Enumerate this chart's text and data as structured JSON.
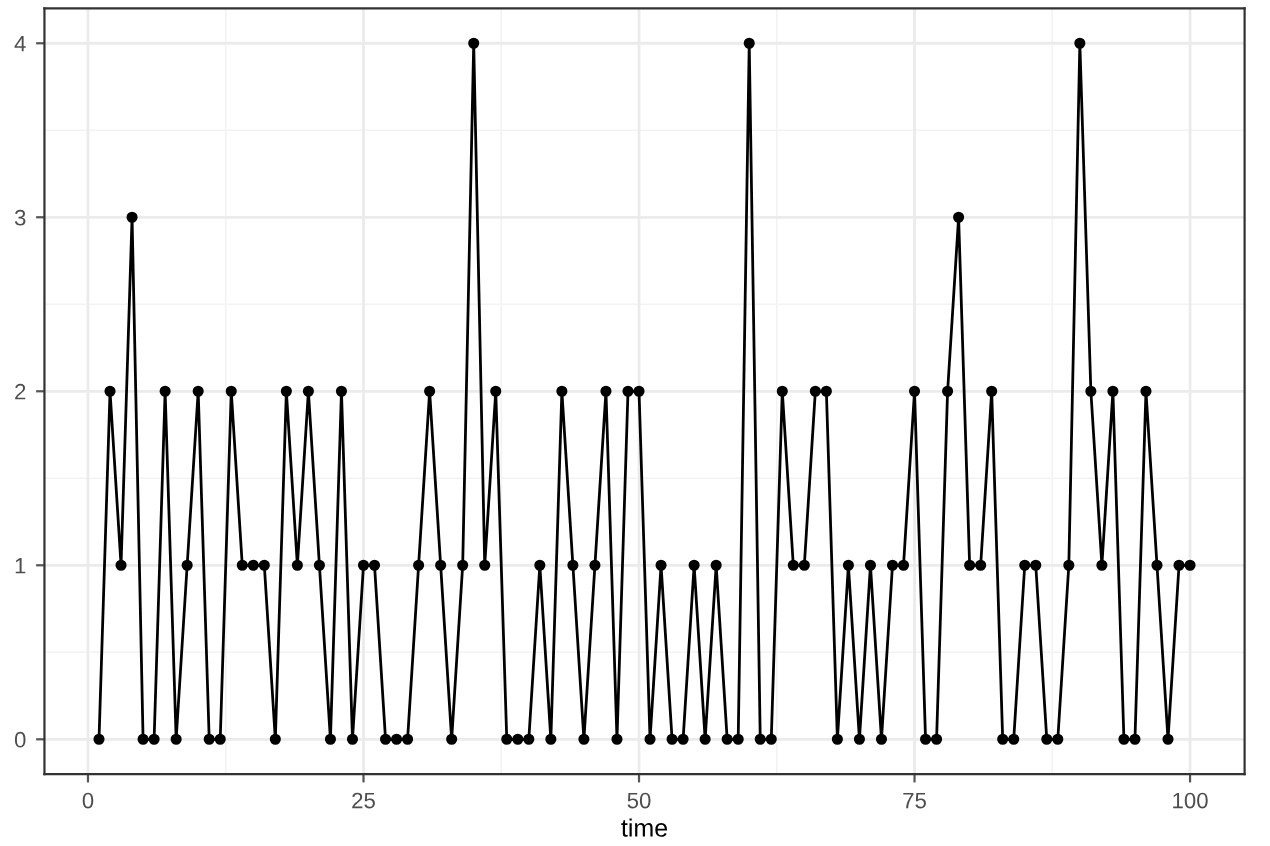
{
  "chart_data": {
    "type": "line",
    "xlabel": "time",
    "x": [
      1,
      2,
      3,
      4,
      5,
      6,
      7,
      8,
      9,
      10,
      11,
      12,
      13,
      14,
      15,
      16,
      17,
      18,
      19,
      20,
      21,
      22,
      23,
      24,
      25,
      26,
      27,
      28,
      29,
      30,
      31,
      32,
      33,
      34,
      35,
      36,
      37,
      38,
      39,
      40,
      41,
      42,
      43,
      44,
      45,
      46,
      47,
      48,
      49,
      50,
      51,
      52,
      53,
      54,
      55,
      56,
      57,
      58,
      59,
      60,
      61,
      62,
      63,
      64,
      65,
      66,
      67,
      68,
      69,
      70,
      71,
      72,
      73,
      74,
      75,
      76,
      77,
      78,
      79,
      80,
      81,
      82,
      83,
      84,
      85,
      86,
      87,
      88,
      89,
      90,
      91,
      92,
      93,
      94,
      95,
      96,
      97,
      98,
      99,
      100
    ],
    "series": [
      {
        "color": "#000000",
        "values": [
          0,
          2,
          1,
          3,
          0,
          0,
          2,
          0,
          1,
          2,
          0,
          0,
          2,
          1,
          1,
          1,
          0,
          2,
          1,
          2,
          1,
          0,
          2,
          0,
          1,
          1,
          0,
          0,
          0,
          1,
          2,
          1,
          0,
          1,
          4,
          1,
          2,
          0,
          0,
          0,
          1,
          0,
          2,
          1,
          0,
          1,
          2,
          0,
          2,
          2,
          0,
          1,
          0,
          0,
          1,
          0,
          1,
          0,
          0,
          4,
          0,
          0,
          2,
          1,
          1,
          2,
          2,
          0,
          1,
          0,
          1,
          0,
          1,
          1,
          2,
          0,
          0,
          2,
          3,
          1,
          1,
          2,
          0,
          0,
          1,
          1,
          0,
          0,
          1,
          4,
          2,
          1,
          2,
          0,
          0,
          2,
          1,
          0,
          1,
          1
        ]
      }
    ],
    "xlim": [
      -3.95,
      104.95
    ],
    "ylim": [
      -0.2,
      4.2
    ],
    "xticks": [
      0,
      25,
      50,
      75,
      100
    ],
    "yticks": [
      0,
      1,
      2,
      3,
      4
    ],
    "grid": true,
    "marker": "circle",
    "line_style": "solid"
  }
}
